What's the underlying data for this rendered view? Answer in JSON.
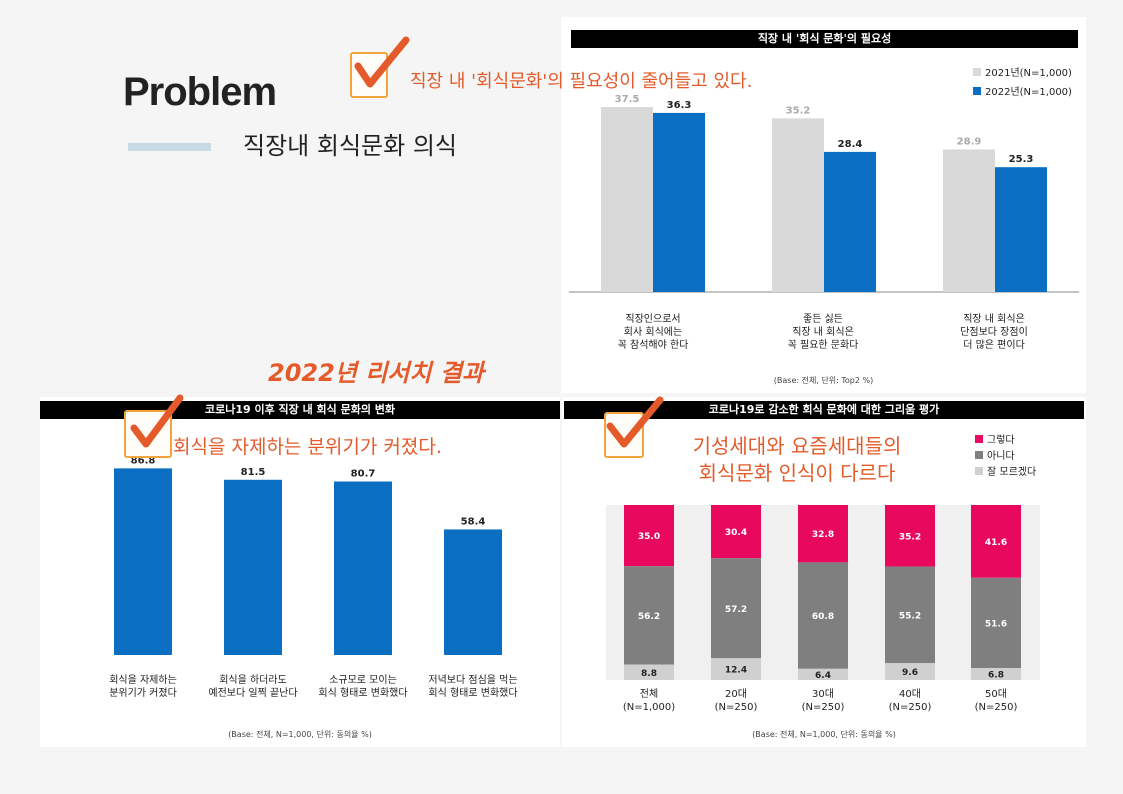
{
  "header": {
    "title": "Problem",
    "subtitle": "직장내 회식문화 의식",
    "research_label": "2022년 리서치 결과"
  },
  "colors": {
    "accent_orange": "#e45a2b",
    "blue": "#0a6fc2",
    "gray_light": "#d9d9d9",
    "pink": "#e8095f",
    "gray_mid": "#7f7f7f",
    "gray_pale": "#d0d0d0"
  },
  "callouts": {
    "necessity": "직장 내 '회식문화'의 필요성이 줄어들고 있다.",
    "change": "회식을 자제하는 분위기가 커졌다.",
    "gen_line1": "기성세대와 요즘세대들의",
    "gen_line2": "회식문화 인식이 다르다"
  },
  "chart_data": [
    {
      "id": "necessity",
      "type": "bar",
      "title": "직장 내 '회식 문화'의 필요성",
      "categories": [
        "직장인으로서\n회사 회식에는\n꼭 참석해야 한다",
        "좋든 싫든\n직장 내 회식은\n꼭 필요한 문화다",
        "직장 내 회식은\n단점보다 장점이\n더 많은 편이다"
      ],
      "series": [
        {
          "name": "2021년(N=1,000)",
          "values": [
            37.5,
            35.2,
            28.9
          ],
          "color": "#d9d9d9"
        },
        {
          "name": "2022년(N=1,000)",
          "values": [
            36.3,
            28.4,
            25.3
          ],
          "color": "#0a6fc2"
        }
      ],
      "ylim": [
        0,
        45
      ],
      "legend": "top-right",
      "note": "(Base: 전체, 단위: Top2 %)"
    },
    {
      "id": "change",
      "type": "bar",
      "title": "코로나19 이후 직장 내 회식 문화의 변화",
      "categories": [
        "회식을 자제하는\n분위기가 커졌다",
        "회식을 하더라도\n예전보다 일찍 끝난다",
        "소규모로 모이는\n회식 형태로 변화했다",
        "저녁보다 점심을 먹는\n회식 형태로 변화했다"
      ],
      "values": [
        86.8,
        81.5,
        80.7,
        58.4
      ],
      "color": "#0a6fc2",
      "ylim": [
        0,
        100
      ],
      "note": "(Base: 전체, N=1,000, 단위: 동의율 %)"
    },
    {
      "id": "nostalgia",
      "type": "bar",
      "stacked": true,
      "title": "코로나19로 감소한 회식 문화에 대한 그리움 평가",
      "categories": [
        "전체\n(N=1,000)",
        "20대\n(N=250)",
        "30대\n(N=250)",
        "40대\n(N=250)",
        "50대\n(N=250)"
      ],
      "series": [
        {
          "name": "그렇다",
          "values": [
            35.0,
            30.4,
            32.8,
            35.2,
            41.6
          ],
          "color": "#e8095f"
        },
        {
          "name": "아니다",
          "values": [
            56.2,
            57.2,
            60.8,
            55.2,
            51.6
          ],
          "color": "#7f7f7f"
        },
        {
          "name": "잘 모르겠다",
          "values": [
            8.8,
            12.4,
            6.4,
            9.6,
            6.8
          ],
          "color": "#d0d0d0"
        }
      ],
      "ylim": [
        0,
        100
      ],
      "legend": "top-right",
      "note": "(Base: 전체, N=1,000, 단위: 동의율 %)"
    }
  ]
}
